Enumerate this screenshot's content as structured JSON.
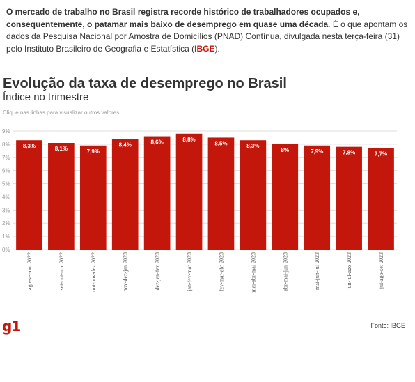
{
  "intro": {
    "bold_text": "O mercado de trabalho no Brasil registra recorde histórico de trabalhadores ocupados e, consequentemente, o patamar mais baixo de desemprego em quase uma década",
    "normal_text": ". É o que apontam os dados da Pesquisa Nacional por Amostra de Domicílios (PNAD) Contínua, divulgada nesta terça-feira (31) pelo Instituto Brasileiro de Geografia e Estatística (",
    "highlight": "IBGE",
    "end": ")."
  },
  "hint": "Clique nas linhas para visualizar outros valores",
  "logo": "g1",
  "source": "Fonte: IBGE",
  "colors": {
    "bar": "#c4170c",
    "grid": "#dddddd",
    "label": "#ffffff"
  },
  "chart_data": {
    "type": "bar",
    "title": "Evolução da taxa de desemprego no Brasil",
    "subtitle": "Índice no trimestre",
    "categories": [
      "ago-set-out 2022",
      "set-out-nov 2022",
      "out-nov-dez 2022",
      "nov-dez-jan 2023",
      "dez-jan-fev 2023",
      "jan-fev-mar 2023",
      "fev-mar-abr 2023",
      "mar-abr-mai 2023",
      "abr-mai-jun 2023",
      "mai-jun-jul 2023",
      "jun-jul-ago 2023",
      "jul-ago-set 2023"
    ],
    "values": [
      8.3,
      8.1,
      7.9,
      8.4,
      8.6,
      8.8,
      8.5,
      8.3,
      8.0,
      7.9,
      7.8,
      7.7
    ],
    "value_labels": [
      "8,3%",
      "8,1%",
      "7,9%",
      "8,4%",
      "8,6%",
      "8,8%",
      "8,5%",
      "8,3%",
      "8%",
      "7,9%",
      "7,8%",
      "7,7%"
    ],
    "ytick_labels": [
      "0%",
      "1%",
      "2%",
      "3%",
      "4%",
      "5%",
      "6%",
      "7%",
      "8%",
      "9%"
    ],
    "ylim": [
      0,
      9
    ],
    "grid": true
  }
}
